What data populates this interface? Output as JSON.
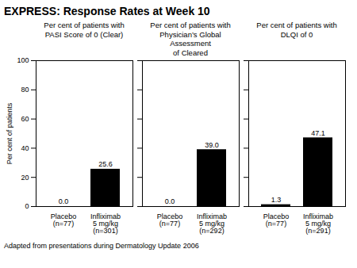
{
  "title": "EXPRESS:  Response Rates at Week 10",
  "footnote": "Adapted from presentations during Dermatology Update 2006",
  "chart_data": [
    {
      "type": "bar",
      "subtitle": "Per cent of patients with\nPASI Score of 0 (Clear)",
      "ylabel": "Per cent of patients",
      "categories": [
        "Placebo\n(n=77)",
        "Infliximab\n5 mg/kg\n(n=301)"
      ],
      "values": [
        0.0,
        25.6
      ],
      "value_labels": [
        "0.0",
        "25.6"
      ],
      "data_labels": true,
      "ylim": [
        0,
        100
      ],
      "yticks": [
        0,
        20,
        40,
        60,
        80,
        100
      ]
    },
    {
      "type": "bar",
      "subtitle": "Per cent of patients with\nPhysician’s Global Assessment\nof Cleared",
      "categories": [
        "Placebo\n(n=77)",
        "Infliximab\n5 mg/kg\n(n=292)"
      ],
      "values": [
        0.0,
        39.0
      ],
      "value_labels": [
        "0.0",
        "39.0"
      ],
      "data_labels": true,
      "tick_labels": "x",
      "ylim": [
        0,
        100
      ],
      "yticks": [
        0,
        20,
        40,
        60,
        80,
        100
      ]
    },
    {
      "type": "bar",
      "subtitle": "Per cent of patients with\nDLQI of 0",
      "categories": [
        "Placebo\n(n=77)",
        "Infliximab\n5 mg/kg\n(n=291)"
      ],
      "values": [
        1.3,
        47.1
      ],
      "value_labels": [
        "1.3",
        "47.1"
      ],
      "data_labels": true,
      "tick_labels": "x",
      "ylim": [
        0,
        100
      ],
      "yticks": [
        0,
        20,
        40,
        60,
        80,
        100
      ]
    }
  ]
}
